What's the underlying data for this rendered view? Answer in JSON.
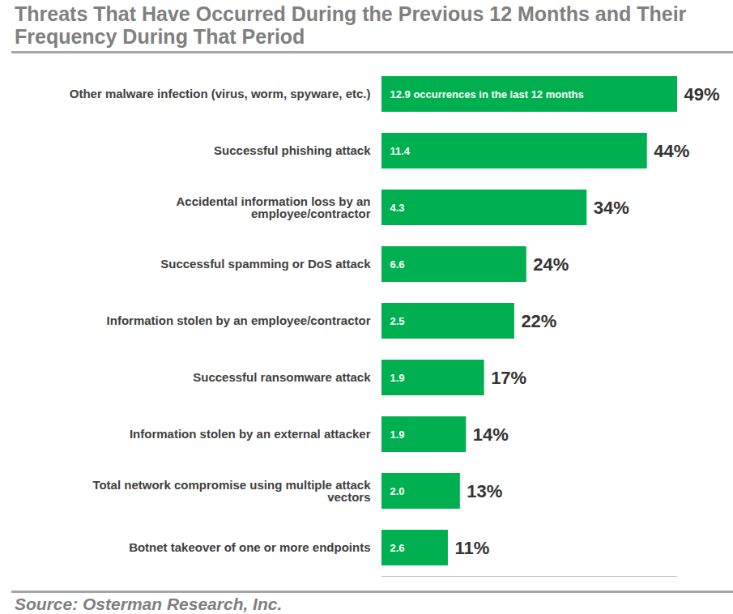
{
  "chart_data": {
    "type": "bar",
    "orientation": "horizontal",
    "title": "Threats That Have Occurred During the Previous 12 Months and Their Frequency During That Period",
    "source": "Source: Osterman Research, Inc.",
    "categories": [
      "Other malware infection (virus, worm, spyware, etc.)",
      "Successful phishing attack",
      "Accidental information loss by an employee/contractor",
      "Successful spamming or DoS attack",
      "Information stolen by an employee/contractor",
      "Successful ransomware attack",
      "Information stolen by an external attacker",
      "Total network compromise using multiple attack vectors",
      "Botnet takeover of one or more endpoints"
    ],
    "values": [
      49,
      44,
      34,
      24,
      22,
      17,
      14,
      13,
      11
    ],
    "value_labels": [
      "49%",
      "44%",
      "34%",
      "24%",
      "22%",
      "17%",
      "14%",
      "13%",
      "11%"
    ],
    "frequencies": [
      12.9,
      11.4,
      4.3,
      6.6,
      2.5,
      1.9,
      1.9,
      2.0,
      2.6
    ],
    "frequency_labels": [
      "12.9 occurrences in the last 12 months",
      "11.4",
      "4.3",
      "6.6",
      "2.5",
      "1.9",
      "1.9",
      "2.0",
      "2.6"
    ],
    "color": "#00b050",
    "xlim": [
      0,
      49
    ],
    "xticks": [],
    "tick_labels": "y",
    "data_labels": true,
    "grid": false
  }
}
